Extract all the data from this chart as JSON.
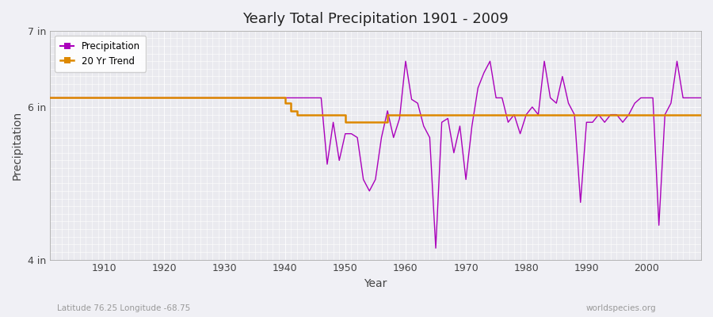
{
  "title": "Yearly Total Precipitation 1901 - 2009",
  "xlabel": "Year",
  "ylabel": "Precipitation",
  "subtitle_left": "Latitude 76.25 Longitude -68.75",
  "subtitle_right": "worldspecies.org",
  "ylim": [
    4,
    7
  ],
  "xlim": [
    1901,
    2009
  ],
  "xticks": [
    1910,
    1920,
    1930,
    1940,
    1950,
    1960,
    1970,
    1980,
    1990,
    2000
  ],
  "yticks": [
    4,
    6,
    7
  ],
  "ytick_labels": [
    "4 in",
    "6 in",
    "7 in"
  ],
  "precip_color": "#aa00bb",
  "trend_color": "#dd8800",
  "background_color": "#e8e8ec",
  "grid_color": "#d8d8e0",
  "years": [
    1901,
    1902,
    1903,
    1904,
    1905,
    1906,
    1907,
    1908,
    1909,
    1910,
    1911,
    1912,
    1913,
    1914,
    1915,
    1916,
    1917,
    1918,
    1919,
    1920,
    1921,
    1922,
    1923,
    1924,
    1925,
    1926,
    1927,
    1928,
    1929,
    1930,
    1931,
    1932,
    1933,
    1934,
    1935,
    1936,
    1937,
    1938,
    1939,
    1940,
    1941,
    1942,
    1943,
    1944,
    1945,
    1946,
    1947,
    1948,
    1949,
    1950,
    1951,
    1952,
    1953,
    1954,
    1955,
    1956,
    1957,
    1958,
    1959,
    1960,
    1961,
    1962,
    1963,
    1964,
    1965,
    1966,
    1967,
    1968,
    1969,
    1970,
    1971,
    1972,
    1973,
    1974,
    1975,
    1976,
    1977,
    1978,
    1979,
    1980,
    1981,
    1982,
    1983,
    1984,
    1985,
    1986,
    1987,
    1988,
    1989,
    1990,
    1991,
    1992,
    1993,
    1994,
    1995,
    1996,
    1997,
    1998,
    1999,
    2000,
    2001,
    2002,
    2003,
    2004,
    2005,
    2006,
    2007,
    2008,
    2009
  ],
  "precip": [
    6.12,
    6.12,
    6.12,
    6.12,
    6.12,
    6.12,
    6.12,
    6.12,
    6.12,
    6.12,
    6.12,
    6.12,
    6.12,
    6.12,
    6.12,
    6.12,
    6.12,
    6.12,
    6.12,
    6.12,
    6.12,
    6.12,
    6.12,
    6.12,
    6.12,
    6.12,
    6.12,
    6.12,
    6.12,
    6.12,
    6.12,
    6.12,
    6.12,
    6.12,
    6.12,
    6.12,
    6.12,
    6.12,
    6.12,
    6.12,
    6.12,
    6.12,
    6.12,
    6.12,
    6.12,
    6.12,
    5.25,
    5.8,
    5.3,
    5.65,
    5.65,
    5.6,
    5.05,
    4.9,
    5.05,
    5.6,
    5.95,
    5.6,
    5.85,
    6.6,
    6.1,
    6.05,
    5.75,
    5.6,
    4.15,
    5.8,
    5.85,
    5.4,
    5.75,
    5.05,
    5.75,
    6.25,
    6.45,
    6.6,
    6.12,
    6.12,
    5.8,
    5.9,
    5.65,
    5.9,
    6.0,
    5.9,
    6.6,
    6.12,
    6.05,
    6.4,
    6.05,
    5.9,
    4.75,
    5.8,
    5.8,
    5.9,
    5.8,
    5.9,
    5.9,
    5.8,
    5.9,
    6.05,
    6.12,
    6.12,
    6.12,
    4.45,
    5.9,
    6.05,
    6.6,
    6.12,
    6.12,
    6.12,
    6.12
  ],
  "trend": [
    6.12,
    6.12,
    6.12,
    6.12,
    6.12,
    6.12,
    6.12,
    6.12,
    6.12,
    6.12,
    6.12,
    6.12,
    6.12,
    6.12,
    6.12,
    6.12,
    6.12,
    6.12,
    6.12,
    6.12,
    6.12,
    6.12,
    6.12,
    6.12,
    6.12,
    6.12,
    6.12,
    6.12,
    6.12,
    6.12,
    6.12,
    6.12,
    6.12,
    6.12,
    6.12,
    6.12,
    6.12,
    6.12,
    6.12,
    6.05,
    5.95,
    5.9,
    5.9,
    5.9,
    5.9,
    5.9,
    5.9,
    5.9,
    5.9,
    5.8,
    5.8,
    5.8,
    5.8,
    5.8,
    5.8,
    5.8,
    5.9,
    5.9,
    5.9,
    5.9,
    5.9,
    5.9,
    5.9,
    5.9,
    5.9,
    5.9,
    5.9,
    5.9,
    5.9,
    5.9,
    5.9,
    5.9,
    5.9,
    5.9,
    5.9,
    5.9,
    5.9,
    5.9,
    5.9,
    5.9,
    5.9,
    5.9,
    5.9,
    5.9,
    5.9,
    5.9,
    5.9,
    5.9,
    5.9,
    5.9,
    5.9,
    5.9,
    5.9,
    5.9,
    5.9,
    5.9,
    5.9,
    5.9,
    5.9,
    5.9,
    5.9,
    5.9,
    5.9,
    5.9,
    5.9,
    5.9,
    5.9,
    5.9,
    5.9
  ]
}
